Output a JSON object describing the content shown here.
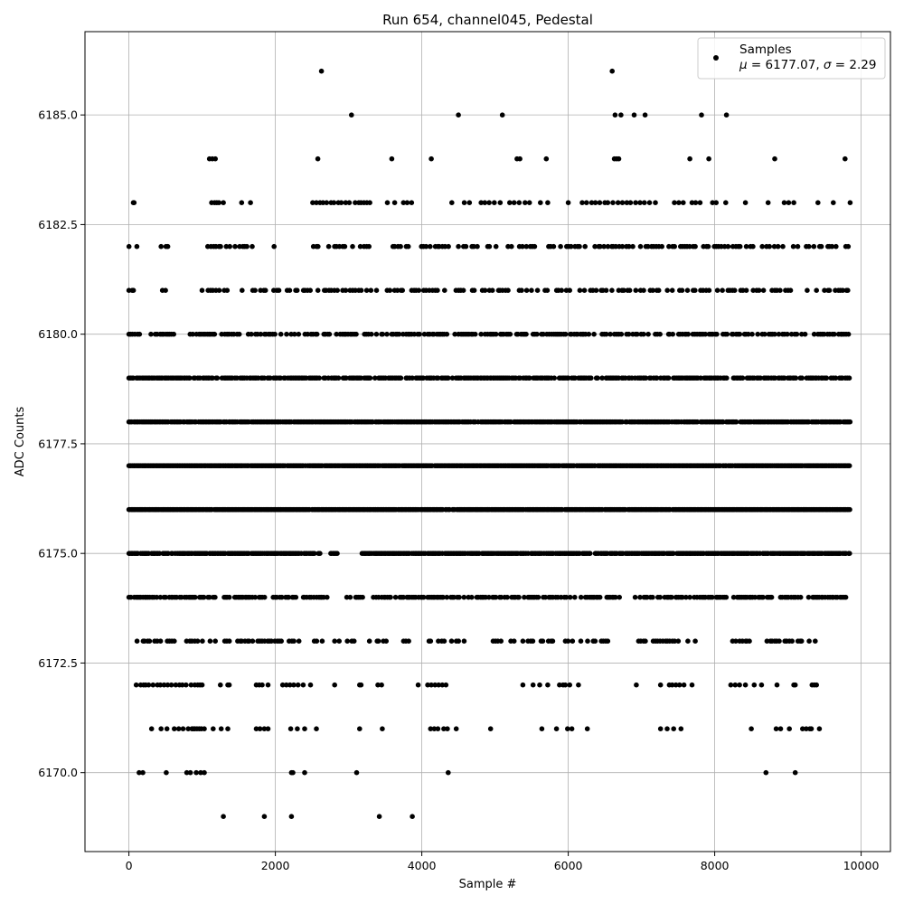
{
  "chart_data": {
    "type": "scatter",
    "title": "Run 654, channel045, Pedestal",
    "xlabel": "Sample #",
    "ylabel": "ADC Counts",
    "xlim": [
      -600,
      10400
    ],
    "ylim": [
      6168.2,
      6186.9
    ],
    "x_ticks": [
      0,
      2000,
      4000,
      6000,
      8000,
      10000
    ],
    "x_tick_labels": [
      "0",
      "2000",
      "4000",
      "6000",
      "8000",
      "10000"
    ],
    "y_ticks": [
      6170.0,
      6172.5,
      6175.0,
      6177.5,
      6180.0,
      6182.5,
      6185.0
    ],
    "y_tick_labels": [
      "6170.0",
      "6172.5",
      "6175.0",
      "6177.5",
      "6180.0",
      "6182.5",
      "6185.0"
    ],
    "grid": true,
    "marker_color": "#000000",
    "legend": {
      "placement": "top-right",
      "entry": "Samples",
      "stats_mu_symbol": "μ",
      "stats_mu_value": " = 6177.07, ",
      "stats_sigma_symbol": "σ",
      "stats_sigma_value": " = 2.29"
    },
    "series": [
      {
        "name": "Samples",
        "n_samples": 9850,
        "mean": 6177.07,
        "std": 2.29,
        "levels": [
          {
            "y": 6186,
            "x": [
              2630,
              6600
            ]
          },
          {
            "y": 6185,
            "x": [
              3040,
              4500,
              5100,
              6640,
              6720,
              6900,
              7050,
              7820,
              8160
            ]
          },
          {
            "y": 6184,
            "x": [
              1100,
              1140,
              1180,
              2580,
              3590,
              4130,
              5300,
              5340,
              5700,
              6630,
              6660,
              6690,
              7660,
              7920,
              8820,
              9780
            ]
          },
          {
            "y": 6183,
            "x": [
              60,
              70,
              1130,
              1170,
              1200,
              1230,
              1290,
              1540,
              1660,
              2510,
              2560,
              2610,
              2650,
              2700,
              2760,
              2800,
              2860,
              2900,
              2960,
              3010,
              3090,
              3140,
              3170,
              3210,
              3250,
              3290,
              3530,
              3630,
              3750,
              3800,
              3860,
              4410,
              4580,
              4650,
              4810,
              4860,
              4920,
              4990,
              5070,
              5200,
              5260,
              5330,
              5410,
              5470,
              5620,
              5720,
              6000,
              6190,
              6250,
              6320,
              6370,
              6430,
              6500,
              6540,
              6610,
              6680,
              6740,
              6800,
              6850,
              6920,
              6980,
              7040,
              7110,
              7190,
              7450,
              7510,
              7570,
              7690,
              7740,
              7800,
              7970,
              8020,
              8150,
              8420,
              8730,
              8950,
              9010,
              9080,
              9410,
              9620,
              9850
            ]
          },
          {
            "y": 6182,
            "x": {
              "start": 0,
              "end": 9850,
              "step": 36,
              "seed": 11,
              "keep": 0.52,
              "gaps": [
                [
                  130,
                  420
                ],
                [
                  560,
                  1050
                ],
                [
                  1760,
                  1960
                ],
                [
                  2060,
                  2470
                ],
                [
                  3330,
                  3550
                ],
                [
                  9150,
                  9240
                ]
              ]
            }
          },
          {
            "y": 6181,
            "x": {
              "start": 0,
              "end": 9850,
              "step": 36,
              "seed": 12,
              "keep": 0.62,
              "gaps": [
                [
                  130,
                  300
                ],
                [
                  340,
                  440
                ],
                [
                  520,
                  1000
                ],
                [
                  1350,
                  1540
                ],
                [
                  1900,
                  1930
                ],
                [
                  6620,
                  6630
                ]
              ]
            }
          },
          {
            "y": 6180,
            "x": {
              "start": 0,
              "end": 9850,
              "step": 28,
              "seed": 13,
              "keep": 0.72,
              "gaps": [
                [
                  160,
                  290
                ],
                [
                  650,
                  820
                ],
                [
                  2280,
                  2310
                ]
              ]
            }
          },
          {
            "y": 6179,
            "x": {
              "start": 0,
              "end": 9850,
              "step": 22,
              "seed": 14,
              "keep": 0.82,
              "gaps": []
            }
          },
          {
            "y": 6178,
            "x": {
              "start": 0,
              "end": 9850,
              "step": 18,
              "seed": 15,
              "keep": 0.93,
              "gaps": []
            }
          },
          {
            "y": 6177,
            "x": {
              "start": 0,
              "end": 9850,
              "step": 16,
              "seed": 16,
              "keep": 0.98,
              "gaps": []
            }
          },
          {
            "y": 6176,
            "x": {
              "start": 0,
              "end": 9850,
              "step": 16,
              "seed": 17,
              "keep": 0.98,
              "gaps": []
            }
          },
          {
            "y": 6175,
            "x": {
              "start": 0,
              "end": 9850,
              "step": 18,
              "seed": 18,
              "keep": 0.9,
              "gaps": [
                [
                  2620,
                  2740
                ],
                [
                  2860,
                  3180
                ]
              ]
            }
          },
          {
            "y": 6174,
            "x": {
              "start": 0,
              "end": 9800,
              "step": 24,
              "seed": 19,
              "keep": 0.72,
              "gaps": [
                [
                  2780,
                  2960
                ],
                [
                  3200,
                  3330
                ],
                [
                  6720,
                  6880
                ]
              ]
            }
          },
          {
            "y": 6173,
            "x": {
              "start": 50,
              "end": 9420,
              "step": 34,
              "seed": 20,
              "keep": 0.55,
              "gaps": [
                [
                  2640,
                  2720
                ],
                [
                  3880,
                  4000
                ],
                [
                  4600,
                  4950
                ],
                [
                  6560,
                  6900
                ],
                [
                  7840,
                  8140
                ],
                [
                  8550,
                  8650
                ]
              ]
            }
          },
          {
            "y": 6172,
            "x": [
              100,
              160,
              200,
              230,
              270,
              330,
              390,
              430,
              480,
              530,
              580,
              640,
              690,
              730,
              780,
              850,
              900,
              940,
              970,
              1000,
              1250,
              1350,
              1370,
              1740,
              1780,
              1820,
              1900,
              2100,
              2150,
              2200,
              2250,
              2310,
              2380,
              2480,
              2810,
              3150,
              3170,
              3400,
              3450,
              3950,
              4080,
              4130,
              4180,
              4230,
              4280,
              4330,
              5380,
              5520,
              5610,
              5720,
              5880,
              5930,
              5960,
              6020,
              6140,
              6930,
              7260,
              7380,
              7420,
              7470,
              7520,
              7580,
              7690,
              8220,
              8280,
              8340,
              8420,
              8540,
              8640,
              8850,
              9080,
              9100,
              9330,
              9360,
              9390
            ]
          },
          {
            "y": 6171,
            "x": [
              310,
              440,
              520,
              620,
              680,
              740,
              810,
              860,
              880,
              900,
              930,
              960,
              990,
              1030,
              1150,
              1260,
              1350,
              1740,
              1790,
              1850,
              1900,
              2210,
              2300,
              2400,
              2560,
              3150,
              3460,
              4120,
              4170,
              4220,
              4300,
              4350,
              4470,
              4940,
              5640,
              5840,
              5990,
              6050,
              6260,
              7260,
              7350,
              7440,
              7540,
              8500,
              8840,
              8900,
              9020,
              9200,
              9250,
              9300,
              9320,
              9430
            ]
          },
          {
            "y": 6170,
            "x": [
              140,
              190,
              510,
              790,
              840,
              920,
              980,
              1030,
              2220,
              2240,
              2400,
              3110,
              4360,
              8700,
              9100
            ]
          },
          {
            "y": 6169,
            "x": [
              1290,
              1850,
              2220,
              3420,
              3870
            ]
          }
        ]
      }
    ]
  }
}
